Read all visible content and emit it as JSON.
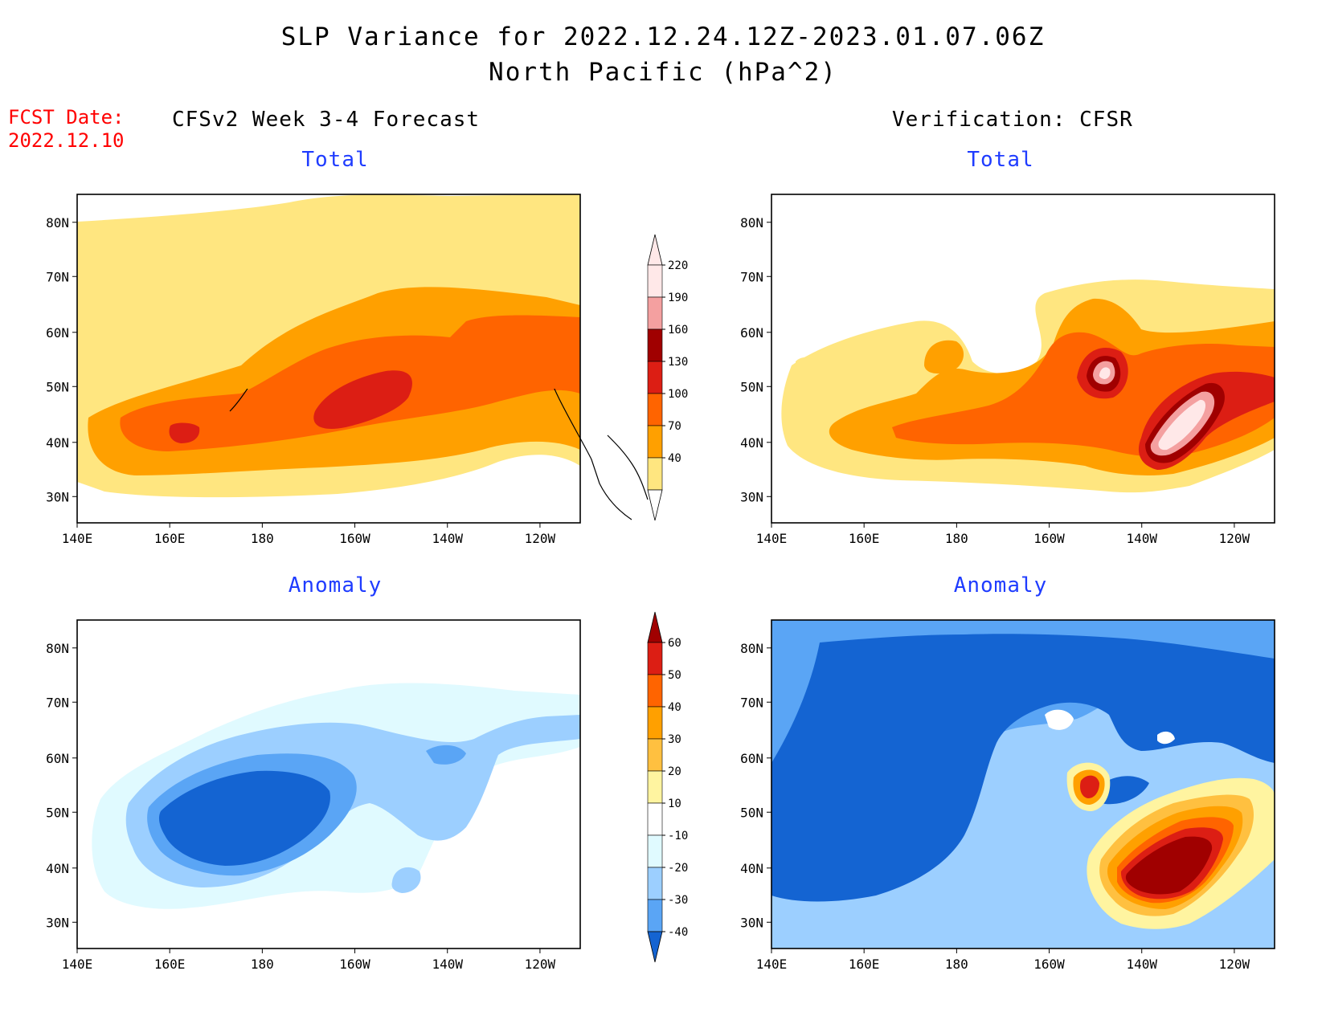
{
  "title": {
    "line1": "SLP Variance for 2022.12.24.12Z-2023.01.07.06Z",
    "line2": "North Pacific (hPa^2)"
  },
  "fcst_date": {
    "label": "FCST Date:",
    "value": "2022.12.10"
  },
  "columns": {
    "left": "CFSv2 Week 3-4 Forecast",
    "right": "Verification: CFSR"
  },
  "panels": {
    "top_left": "Total",
    "top_right": "Total",
    "bottom_left": "Anomaly",
    "bottom_right": "Anomaly"
  },
  "axes": {
    "lat_labels": [
      "80N",
      "70N",
      "60N",
      "50N",
      "40N",
      "30N"
    ],
    "lon_labels": [
      "140E",
      "160E",
      "180",
      "160W",
      "140W",
      "120W"
    ]
  },
  "colorbars": {
    "total": {
      "labels": [
        "220",
        "190",
        "160",
        "130",
        "100",
        "70",
        "40"
      ],
      "colors": [
        "#ffe8e8",
        "#f4a0a0",
        "#a00000",
        "#dc1e14",
        "#ff6400",
        "#ffa000",
        "#ffe680"
      ]
    },
    "anomaly": {
      "labels": [
        "60",
        "50",
        "40",
        "30",
        "20",
        "10",
        "-10",
        "-20",
        "-30",
        "-40"
      ],
      "colors": [
        "#a00000",
        "#dc1e14",
        "#ff6400",
        "#ffa000",
        "#ffc040",
        "#fff4a0",
        "#ffffff",
        "#e0faff",
        "#9ccfff",
        "#5aa5f5",
        "#1464d2"
      ]
    }
  }
}
